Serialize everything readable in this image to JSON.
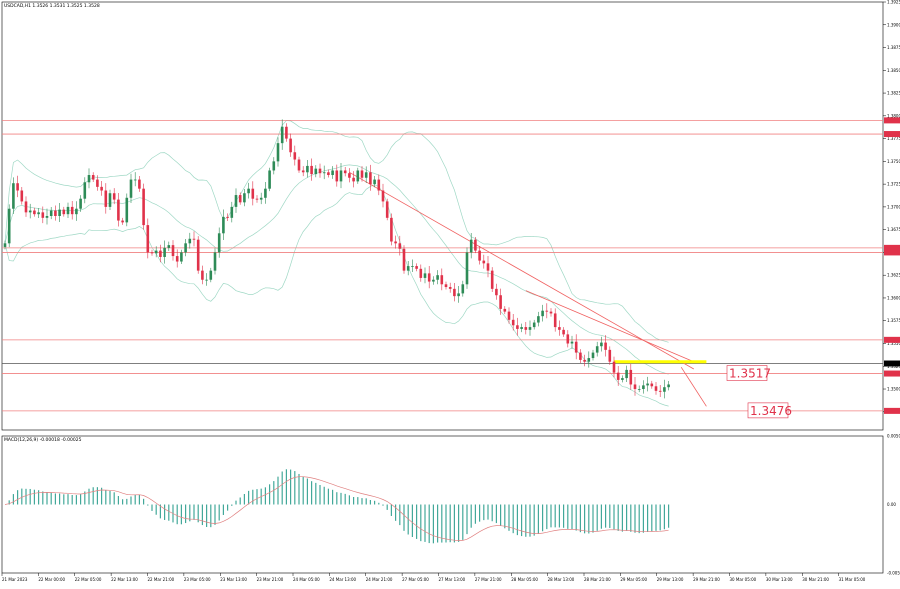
{
  "header": {
    "symbol_text": "USDCAD,H1  1.3526 1.3531 1.3525 1.3528",
    "macd_text": "MACD(12,26,9) -0.00018 -0.00025"
  },
  "colors": {
    "bull": "#2E8B57",
    "bear": "#E0324A",
    "hline": "#F08080",
    "band": "#9FD8C5",
    "macd_hist": "#43A89A",
    "signal": "#E08080",
    "trend": "#F06060",
    "highlight": "#FFFF00",
    "box_text": "#E0324A"
  },
  "chart_data": [
    {
      "type": "candlestick",
      "ylim": [
        1.3455,
        1.3925
      ],
      "yticks": [
        "1.3925",
        "1.3900",
        "1.3875",
        "1.3850",
        "1.3825",
        "1.3800",
        "1.3775",
        "1.3750",
        "1.3725",
        "1.3700",
        "1.3675",
        "1.3650",
        "1.3625",
        "1.3600",
        "1.3575",
        "1.3550",
        "1.3525",
        "1.3500",
        "1.3475"
      ],
      "xlabels": [
        "21 Mar 2023",
        "22 Mar 00:00",
        "22 Mar 05:00",
        "22 Mar 13:00",
        "22 Mar 21:00",
        "23 Mar 05:00",
        "23 Mar 13:00",
        "23 Mar 21:00",
        "24 Mar 05:00",
        "24 Mar 13:00",
        "24 Mar 21:00",
        "27 Mar 05:00",
        "27 Mar 13:00",
        "27 Mar 21:00",
        "28 Mar 05:00",
        "28 Mar 13:00",
        "28 Mar 21:00",
        "29 Mar 05:00",
        "29 Mar 13:00",
        "29 Mar 21:00",
        "30 Mar 05:00",
        "30 Mar 13:00",
        "30 Mar 21:00",
        "31 Mar 05:00"
      ],
      "closes": [
        1.366,
        1.3698,
        1.3726,
        1.3718,
        1.3706,
        1.3694,
        1.3696,
        1.3692,
        1.3694,
        1.3688,
        1.369,
        1.3696,
        1.369,
        1.3697,
        1.3692,
        1.37,
        1.3692,
        1.3698,
        1.3709,
        1.3727,
        1.3735,
        1.373,
        1.3722,
        1.3718,
        1.37,
        1.3715,
        1.3708,
        1.3685,
        1.3683,
        1.371,
        1.373,
        1.373,
        1.372,
        1.368,
        1.365,
        1.3649,
        1.3652,
        1.3645,
        1.3655,
        1.3658,
        1.3646,
        1.364,
        1.365,
        1.366,
        1.3665,
        1.3664,
        1.363,
        1.362,
        1.362,
        1.363,
        1.365,
        1.3671,
        1.3689,
        1.3688,
        1.37,
        1.3713,
        1.3705,
        1.3715,
        1.372,
        1.3709,
        1.3708,
        1.371,
        1.372,
        1.374,
        1.375,
        1.377,
        1.3788,
        1.3775,
        1.376,
        1.3752,
        1.374,
        1.3738,
        1.3745,
        1.3736,
        1.3742,
        1.3737,
        1.3738,
        1.3735,
        1.374,
        1.3728,
        1.374,
        1.3737,
        1.3732,
        1.3728,
        1.374,
        1.3732,
        1.3738,
        1.3725,
        1.373,
        1.3718,
        1.3706,
        1.3688,
        1.3662,
        1.366,
        1.3654,
        1.363,
        1.3635,
        1.3635,
        1.3632,
        1.3622,
        1.3627,
        1.3618,
        1.362,
        1.3625,
        1.3615,
        1.3612,
        1.361,
        1.3602,
        1.3605,
        1.3615,
        1.365,
        1.3664,
        1.3652,
        1.3641,
        1.3638,
        1.363,
        1.361,
        1.3603,
        1.3588,
        1.3585,
        1.3576,
        1.357,
        1.3566,
        1.3568,
        1.3565,
        1.3568,
        1.3573,
        1.358,
        1.3586,
        1.3585,
        1.3583,
        1.3568,
        1.3565,
        1.356,
        1.355,
        1.3552,
        1.354,
        1.3532,
        1.353,
        1.3534,
        1.354,
        1.3547,
        1.3551,
        1.3543,
        1.353,
        1.3518,
        1.351,
        1.3512,
        1.3521,
        1.3505,
        1.35,
        1.35,
        1.3504,
        1.3506,
        1.3503,
        1.3498,
        1.3497,
        1.3502,
        1.3505
      ],
      "bollinger_period": 20,
      "bollinger_k": 2,
      "horizontal_levels": [
        1.3795,
        1.378,
        1.3655,
        1.365,
        1.3554,
        1.3528,
        1.3517,
        1.3476
      ],
      "current_price": 1.3528,
      "callouts": [
        {
          "label": "1.3517",
          "price": 1.3517
        },
        {
          "label": "1.3476",
          "price": 1.3476
        }
      ],
      "highlight_level": 1.353,
      "trendlines": [
        {
          "from": [
            1.3738,
            82
          ],
          "to": [
            1.3522,
            164
          ]
        },
        {
          "from": [
            1.3608,
            124
          ],
          "to": [
            1.353,
            164
          ]
        }
      ],
      "projection": {
        "from": [
          1.3524,
          161
        ],
        "to": [
          1.3481,
          167
        ]
      }
    },
    {
      "type": "bar",
      "name": "MACD(12,26,9)",
      "ylim": [
        -0.005,
        0.005
      ],
      "yticks": [
        "0.0050",
        "0.00",
        "-0.0050"
      ],
      "fast": 12,
      "slow": 26,
      "signal_period": 9
    }
  ]
}
